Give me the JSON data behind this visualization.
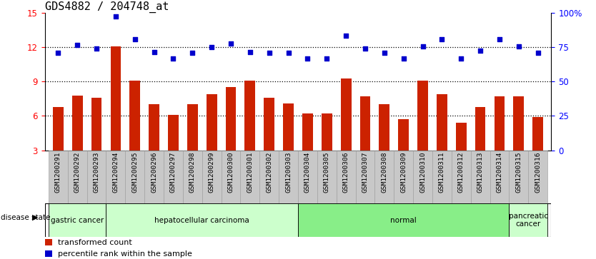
{
  "title": "GDS4882 / 204748_at",
  "samples": [
    "GSM1200291",
    "GSM1200292",
    "GSM1200293",
    "GSM1200294",
    "GSM1200295",
    "GSM1200296",
    "GSM1200297",
    "GSM1200298",
    "GSM1200299",
    "GSM1200300",
    "GSM1200301",
    "GSM1200302",
    "GSM1200303",
    "GSM1200304",
    "GSM1200305",
    "GSM1200306",
    "GSM1200307",
    "GSM1200308",
    "GSM1200309",
    "GSM1200310",
    "GSM1200311",
    "GSM1200312",
    "GSM1200313",
    "GSM1200314",
    "GSM1200315",
    "GSM1200316"
  ],
  "bar_values": [
    6.8,
    7.8,
    7.6,
    12.1,
    9.1,
    7.0,
    6.1,
    7.0,
    7.9,
    8.5,
    9.1,
    7.6,
    7.1,
    6.2,
    6.2,
    9.3,
    7.7,
    7.0,
    5.7,
    9.1,
    7.9,
    5.4,
    6.8,
    7.7,
    7.7,
    5.9
  ],
  "dot_values": [
    11.5,
    12.2,
    11.9,
    14.7,
    12.7,
    11.6,
    11.0,
    11.5,
    12.0,
    12.3,
    11.6,
    11.5,
    11.5,
    11.0,
    11.0,
    13.0,
    11.9,
    11.5,
    11.0,
    12.1,
    12.7,
    11.0,
    11.7,
    12.7,
    12.1,
    11.5
  ],
  "bar_color": "#cc2200",
  "dot_color": "#0000cc",
  "ylim_left": [
    3,
    15
  ],
  "yticks_left": [
    3,
    6,
    9,
    12,
    15
  ],
  "yticks_right": [
    0,
    25,
    50,
    75,
    100
  ],
  "ylim_right": [
    0,
    100
  ],
  "disease_groups": [
    {
      "label": "gastric cancer",
      "start": 0,
      "end": 3
    },
    {
      "label": "hepatocellular carcinoma",
      "start": 3,
      "end": 13
    },
    {
      "label": "normal",
      "start": 13,
      "end": 24
    },
    {
      "label": "pancreatic\ncancer",
      "start": 24,
      "end": 26
    }
  ],
  "green_light": "#ccffcc",
  "green_dark": "#66dd66",
  "xtick_bg": "#c8c8c8",
  "xtick_border": "#999999",
  "disease_state_label": "disease state",
  "legend_bar_label": "transformed count",
  "legend_dot_label": "percentile rank within the sample",
  "title_fontsize": 11,
  "tick_fontsize": 6.8,
  "gridline_color": "black",
  "gridline_style": ":"
}
